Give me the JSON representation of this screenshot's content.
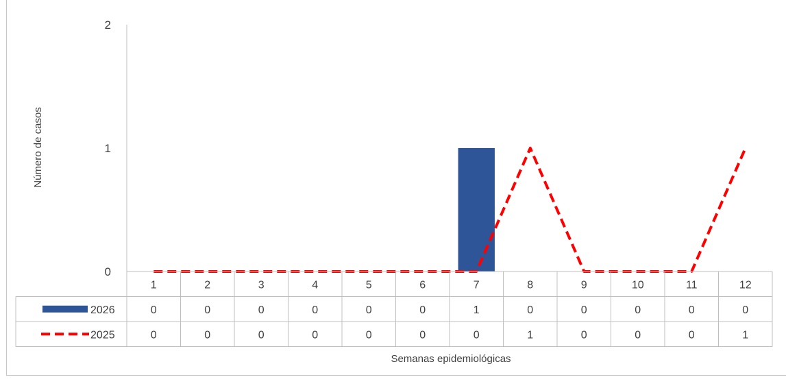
{
  "chart_data": {
    "type": "bar",
    "title": "",
    "xlabel": "Semanas epidemiológicas",
    "ylabel": "Número de casos",
    "ylim": [
      0,
      2
    ],
    "yticks": [
      0,
      1,
      2
    ],
    "categories": [
      "1",
      "2",
      "3",
      "4",
      "5",
      "6",
      "7",
      "8",
      "9",
      "10",
      "11",
      "12"
    ],
    "series": [
      {
        "name": "2026",
        "kind": "bar",
        "color": "#2e5597",
        "values": [
          0,
          0,
          0,
          0,
          0,
          0,
          1,
          0,
          0,
          0,
          0,
          0
        ]
      },
      {
        "name": "2025",
        "kind": "line",
        "style": "dashed",
        "color": "#ff0000",
        "values": [
          0,
          0,
          0,
          0,
          0,
          0,
          0,
          1,
          0,
          0,
          0,
          1
        ]
      }
    ],
    "data_table": true,
    "grid": false,
    "legend": "in data table"
  }
}
